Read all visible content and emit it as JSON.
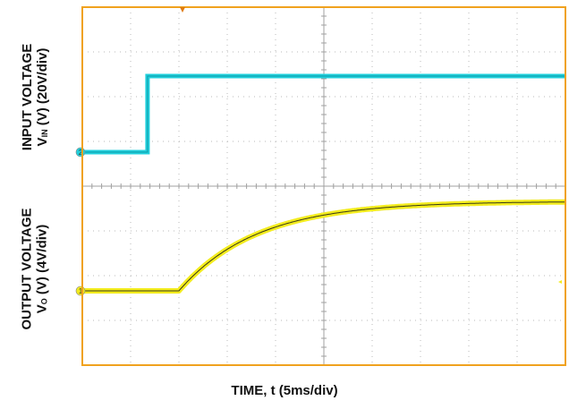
{
  "chart_data": {
    "type": "line",
    "xlabel": "TIME, t (5ms/div)",
    "ylabel_top": {
      "line1": "INPUT VOLTAGE",
      "line2_main": "V",
      "line2_sub": "IN",
      "line2_rest": " (V) (20V/div)"
    },
    "ylabel_bottom": {
      "line1": "OUTPUT VOLTAGE",
      "line2_main": "V",
      "line2_sub": "O",
      "line2_rest": " (V) (4V/div)"
    },
    "grid": true,
    "divisions": {
      "x": 10,
      "y": 8
    },
    "x_unit_per_div": 5,
    "colors": {
      "frame": "#f0a21e",
      "ch2": "#20d0dc",
      "ch1": "#f3ec1e",
      "marker": "#e07b10",
      "grid": "#b8b8b8"
    },
    "series": [
      {
        "channel": "2",
        "color": "#20d0dc",
        "points": [
          [
            0,
            0
          ],
          [
            1.35,
            0
          ],
          [
            1.35,
            1.7
          ],
          [
            10,
            1.7
          ]
        ]
      },
      {
        "channel": "1",
        "color": "#f3ec1e",
        "step_time_div": 2.0,
        "baseline_div": 0,
        "final_div": 2.0,
        "tau_div": 1.6
      }
    ],
    "channel_markers": [
      {
        "label": "2",
        "level_div": 0,
        "color": "#20d0dc"
      },
      {
        "label": "1",
        "level_div": 0,
        "color": "#f3ec1e"
      }
    ]
  }
}
